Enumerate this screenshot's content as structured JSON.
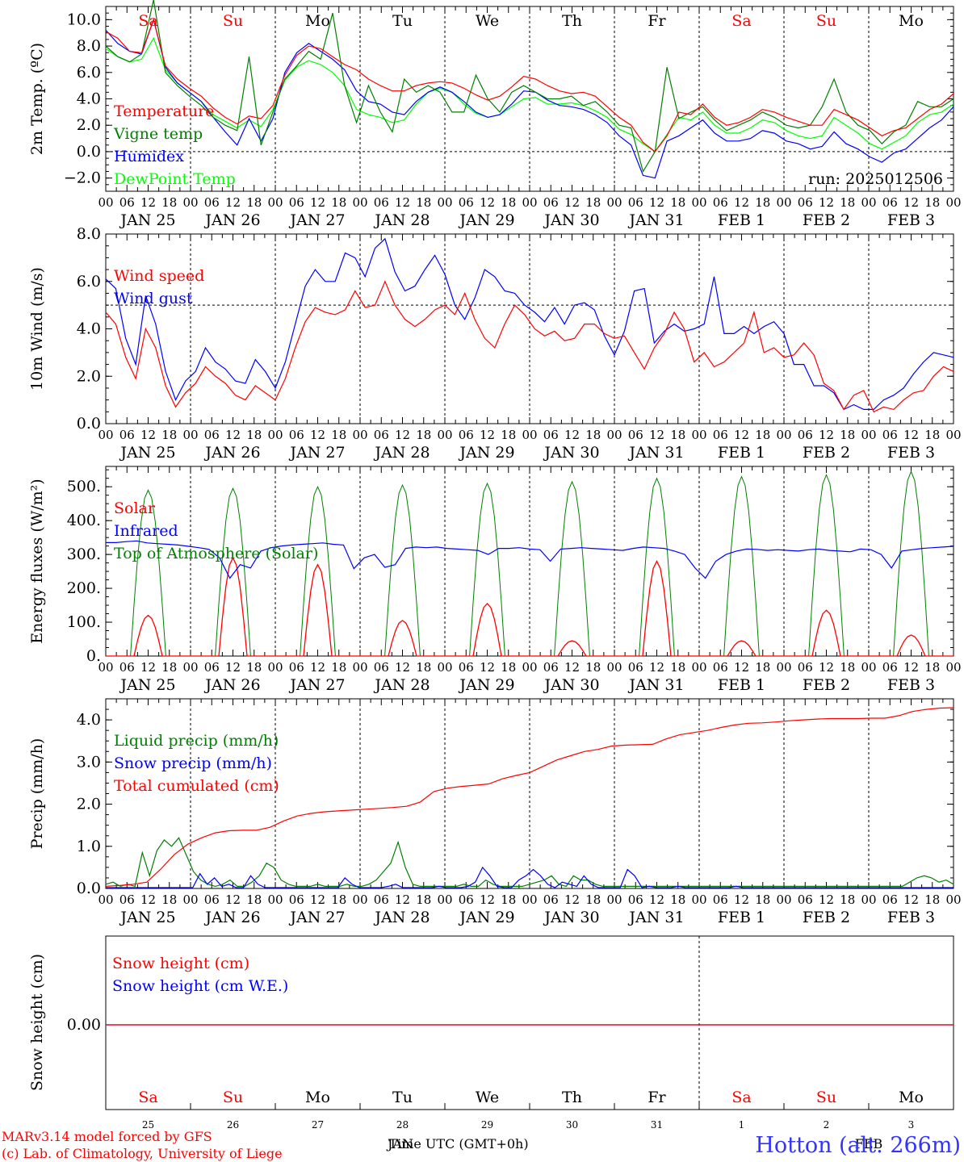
{
  "chart_data": [
    {
      "type": "line",
      "ylabel": "2m Temp. (ºC)",
      "ylim": [
        -3,
        11
      ],
      "yticks": [
        "10.0",
        "8.0",
        "6.0",
        "4.0",
        "2.0",
        "0.0",
        "−2.0"
      ],
      "ytick_values": [
        10,
        8,
        6,
        4,
        2,
        0,
        -2
      ],
      "ref_line": 0,
      "annotation": "run: 2025012506",
      "series": [
        {
          "name": "Temperature",
          "color": "#ff0000",
          "values": [
            9.1,
            8.6,
            7.6,
            7.5,
            10.0,
            6.5,
            5.5,
            4.8,
            4.2,
            3.3,
            2.6,
            2.1,
            2.7,
            2.5,
            3.5,
            5.8,
            7.3,
            8.0,
            7.8,
            7.2,
            6.6,
            6.2,
            5.5,
            5.0,
            4.6,
            4.6,
            5.0,
            5.2,
            5.3,
            5.2,
            4.8,
            4.3,
            3.9,
            4.2,
            4.9,
            5.7,
            5.5,
            5.0,
            4.6,
            4.4,
            4.5,
            4.2,
            3.4,
            2.6,
            2.0,
            0.7,
            0.0,
            1.2,
            3.0,
            2.8,
            3.6,
            2.6,
            2.0,
            2.2,
            2.6,
            3.2,
            3.0,
            2.6,
            2.3,
            2.0,
            2.0,
            3.2,
            2.8,
            2.4,
            1.8,
            1.2,
            1.6,
            1.8,
            2.5,
            3.2,
            3.6,
            4.4
          ]
        },
        {
          "name": "Vigne temp",
          "color": "#008000",
          "values": [
            8.0,
            7.2,
            6.8,
            7.4,
            11.5,
            6.0,
            5.0,
            4.2,
            3.5,
            2.6,
            2.0,
            1.6,
            7.2,
            0.5,
            3.0,
            5.5,
            6.5,
            7.6,
            7.0,
            10.5,
            5.0,
            2.2,
            5.0,
            3.0,
            1.5,
            5.5,
            4.5,
            5.0,
            4.5,
            3.0,
            3.0,
            5.8,
            4.0,
            3.0,
            4.5,
            5.0,
            4.5,
            4.0,
            4.0,
            4.2,
            3.5,
            3.8,
            3.0,
            2.0,
            1.8,
            -1.5,
            0.0,
            6.4,
            2.5,
            3.0,
            3.4,
            2.4,
            1.6,
            2.0,
            2.4,
            3.0,
            2.6,
            2.0,
            1.8,
            2.0,
            3.4,
            5.5,
            3.0,
            2.0,
            1.6,
            0.6,
            1.5,
            2.0,
            3.8,
            3.4,
            3.4,
            4.0
          ]
        },
        {
          "name": "Humidex",
          "color": "#0000ff",
          "values": [
            9.2,
            8.2,
            7.6,
            7.4,
            10.0,
            6.4,
            5.2,
            4.5,
            3.8,
            2.6,
            1.5,
            0.5,
            2.5,
            0.8,
            2.5,
            6.0,
            7.5,
            8.2,
            7.6,
            7.0,
            6.2,
            4.6,
            3.8,
            3.6,
            3.0,
            2.8,
            3.8,
            4.5,
            4.9,
            4.5,
            3.8,
            3.0,
            2.6,
            2.8,
            3.6,
            4.6,
            4.5,
            3.9,
            3.5,
            3.4,
            3.2,
            2.8,
            2.2,
            1.2,
            0.5,
            -1.8,
            -2.0,
            0.8,
            1.2,
            1.8,
            2.4,
            1.4,
            0.8,
            0.8,
            1.0,
            1.6,
            1.4,
            0.8,
            0.6,
            0.2,
            0.4,
            1.5,
            0.6,
            0.2,
            -0.4,
            -0.8,
            -0.1,
            0.2,
            1.0,
            1.8,
            2.4,
            3.4
          ]
        },
        {
          "name": "DewPoint Temp",
          "color": "#00ff00",
          "values": [
            7.8,
            7.2,
            6.8,
            7.0,
            8.6,
            6.2,
            5.2,
            4.5,
            3.8,
            2.8,
            2.3,
            1.8,
            2.4,
            1.9,
            3.2,
            5.4,
            6.4,
            6.9,
            6.6,
            6.0,
            5.0,
            3.2,
            2.8,
            2.6,
            2.2,
            2.4,
            3.6,
            4.5,
            4.8,
            4.5,
            3.6,
            2.9,
            2.6,
            2.8,
            3.4,
            4.0,
            4.1,
            3.6,
            3.6,
            3.7,
            3.5,
            3.1,
            2.6,
            1.7,
            1.3,
            0.6,
            0.0,
            1.3,
            2.6,
            2.4,
            3.0,
            2.0,
            1.4,
            1.4,
            1.8,
            2.4,
            2.2,
            1.6,
            1.2,
            1.0,
            1.2,
            2.6,
            2.0,
            1.4,
            0.6,
            0.2,
            0.7,
            1.2,
            2.2,
            2.8,
            3.0,
            3.6
          ]
        }
      ]
    },
    {
      "type": "line",
      "ylabel": "10m Wind (m/s)",
      "ylim": [
        0,
        8
      ],
      "yticks": [
        "8.0",
        "6.0",
        "4.0",
        "2.0",
        "0.0"
      ],
      "ytick_values": [
        8,
        6,
        4,
        2,
        0
      ],
      "ref_line": 5,
      "series": [
        {
          "name": "Wind speed",
          "color": "#ff0000",
          "values": [
            4.7,
            4.2,
            2.8,
            1.9,
            4.0,
            3.2,
            1.6,
            0.7,
            1.3,
            1.7,
            2.4,
            2.0,
            1.7,
            1.2,
            1.0,
            1.6,
            1.3,
            1.0,
            1.9,
            3.2,
            4.3,
            4.9,
            4.7,
            4.6,
            4.8,
            5.6,
            4.9,
            5.0,
            6.0,
            5.0,
            4.4,
            4.1,
            4.4,
            4.8,
            5.0,
            4.6,
            5.5,
            4.4,
            3.6,
            3.2,
            4.2,
            5.0,
            4.6,
            4.0,
            3.7,
            3.9,
            3.5,
            3.6,
            4.2,
            4.2,
            3.8,
            3.6,
            3.7,
            3.0,
            2.3,
            3.2,
            3.8,
            4.7,
            4.0,
            2.6,
            3.0,
            2.4,
            2.6,
            3.0,
            3.4,
            4.7,
            3.0,
            3.2,
            2.8,
            2.9,
            3.4,
            2.9,
            1.7,
            1.4,
            0.6,
            1.2,
            1.4,
            0.5,
            0.7,
            0.6,
            1.0,
            1.3,
            1.4,
            2.0,
            2.4,
            2.2
          ]
        },
        {
          "name": "Wind gust",
          "color": "#0000ff",
          "values": [
            6.1,
            5.7,
            3.6,
            2.5,
            5.4,
            4.2,
            2.2,
            1.0,
            1.8,
            2.2,
            3.2,
            2.6,
            2.3,
            1.8,
            1.7,
            2.7,
            2.2,
            1.5,
            2.6,
            4.2,
            5.8,
            6.5,
            6.0,
            6.0,
            7.2,
            7.0,
            6.2,
            7.4,
            7.8,
            6.4,
            5.6,
            5.8,
            6.5,
            7.1,
            6.3,
            5.0,
            4.4,
            5.3,
            6.5,
            6.2,
            5.6,
            5.5,
            5.0,
            4.7,
            4.3,
            4.9,
            4.2,
            5.0,
            5.1,
            4.8,
            3.7,
            2.9,
            3.9,
            5.6,
            5.7,
            3.4,
            3.9,
            4.2,
            3.9,
            4.0,
            4.2,
            6.2,
            3.8,
            3.8,
            4.1,
            3.8,
            4.1,
            4.3,
            3.8,
            2.5,
            2.5,
            1.6,
            1.6,
            1.3,
            0.6,
            0.8,
            0.6,
            0.6,
            1.0,
            1.2,
            1.5,
            2.1,
            2.6,
            3.0,
            2.9,
            2.8
          ]
        }
      ]
    },
    {
      "type": "line",
      "ylabel": "Energy fluxes (W/m²)",
      "ylim": [
        0,
        560
      ],
      "yticks": [
        "500.",
        "400.",
        "300.",
        "200.",
        "100.",
        "0."
      ],
      "ytick_values": [
        500,
        400,
        300,
        200,
        100,
        0
      ],
      "series": [
        {
          "name": "Solar",
          "color": "#ff0000",
          "peaks": [
            120,
            290,
            270,
            105,
            155,
            45,
            280,
            45,
            135,
            62
          ]
        },
        {
          "name": "Infrared",
          "color": "#0000ff",
          "values": [
            335,
            335,
            338,
            340,
            334,
            332,
            330,
            328,
            324,
            320,
            315,
            290,
            230,
            270,
            260,
            310,
            320,
            325,
            328,
            330,
            332,
            334,
            330,
            328,
            258,
            290,
            300,
            262,
            270,
            318,
            322,
            320,
            322,
            318,
            316,
            314,
            312,
            300,
            318,
            318,
            320,
            316,
            314,
            280,
            316,
            318,
            320,
            318,
            316,
            314,
            312,
            318,
            322,
            320,
            318,
            310,
            300,
            260,
            230,
            280,
            300,
            310,
            316,
            315,
            312,
            314,
            312,
            310,
            314,
            316,
            312,
            310,
            308,
            316,
            314,
            300,
            260,
            310,
            314,
            318,
            320,
            322,
            324
          ]
        },
        {
          "name": "Top of Atmosphere (Solar)",
          "color": "#008000",
          "peaks": [
            490,
            495,
            500,
            505,
            510,
            515,
            525,
            530,
            535,
            545
          ]
        }
      ]
    },
    {
      "type": "line",
      "ylabel": "Precip (mm/h)",
      "ylim": [
        0,
        4.5
      ],
      "yticks": [
        "4.0",
        "3.0",
        "2.0",
        "1.0",
        "0.0"
      ],
      "ytick_values": [
        4,
        3,
        2,
        1,
        0
      ],
      "series": [
        {
          "name": "Liquid precip (mm/h)",
          "color": "#008000",
          "values": [
            0.1,
            0.15,
            0.05,
            0.1,
            0.05,
            0.85,
            0.3,
            0.9,
            1.15,
            1.0,
            1.2,
            0.8,
            0.4,
            0.2,
            0.1,
            0.05,
            0.1,
            0.2,
            0.05,
            0.05,
            0.15,
            0.3,
            0.6,
            0.5,
            0.2,
            0.1,
            0.05,
            0.05,
            0.05,
            0.1,
            0.05,
            0.05,
            0.05,
            0.1,
            0.05,
            0.05,
            0.1,
            0.2,
            0.4,
            0.6,
            1.1,
            0.5,
            0.1,
            0.05,
            0.05,
            0.05,
            0.05,
            0.05,
            0.05,
            0.1,
            0.05,
            0.05,
            0.2,
            0.1,
            0.05,
            0.05,
            0.05,
            0.05,
            0.1,
            0.15,
            0.2,
            0.3,
            0.1,
            0.05,
            0.3,
            0.2,
            0.2,
            0.1,
            0.05,
            0.05,
            0.05,
            0.05,
            0.05,
            0.05,
            0.05,
            0.05,
            0.05,
            0.05,
            0.05,
            0.05,
            0.05,
            0.05,
            0.05,
            0.05,
            0.05,
            0.05,
            0.05,
            0.05,
            0.05,
            0.05,
            0.05,
            0.05,
            0.05,
            0.05,
            0.05,
            0.05,
            0.05,
            0.05,
            0.05,
            0.05,
            0.05,
            0.05,
            0.05,
            0.05,
            0.05,
            0.05,
            0.05,
            0.05,
            0.05,
            0.05,
            0.15,
            0.25,
            0.3,
            0.25,
            0.15,
            0.2,
            0.1
          ]
        },
        {
          "name": "Snow precip (mm/h)",
          "color": "#0000ff",
          "values": [
            0.02,
            0.02,
            0.02,
            0.02,
            0.02,
            0.02,
            0.02,
            0.02,
            0.02,
            0.02,
            0.02,
            0.02,
            0.02,
            0.35,
            0.1,
            0.25,
            0.05,
            0.1,
            0.02,
            0.02,
            0.3,
            0.1,
            0.02,
            0.02,
            0.02,
            0.02,
            0.02,
            0.02,
            0.02,
            0.02,
            0.02,
            0.02,
            0.02,
            0.25,
            0.1,
            0.02,
            0.02,
            0.02,
            0.02,
            0.05,
            0.1,
            0.02,
            0.02,
            0.02,
            0.02,
            0.02,
            0.05,
            0.02,
            0.02,
            0.02,
            0.05,
            0.15,
            0.5,
            0.3,
            0.05,
            0.02,
            0.02,
            0.2,
            0.3,
            0.45,
            0.3,
            0.1,
            0.02,
            0.15,
            0.1,
            0.05,
            0.3,
            0.1,
            0.02,
            0.02,
            0.02,
            0.02,
            0.45,
            0.3,
            0.02,
            0.05,
            0.02,
            0.02,
            0.02,
            0.05,
            0.02,
            0.02,
            0.02,
            0.02,
            0.02,
            0.02,
            0.02,
            0.05,
            0.02,
            0.02,
            0.02,
            0.02,
            0.02,
            0.02,
            0.02,
            0.02,
            0.02,
            0.02,
            0.02,
            0.02,
            0.02,
            0.02,
            0.02,
            0.02,
            0.02,
            0.02,
            0.02,
            0.02,
            0.02,
            0.02,
            0.02,
            0.02,
            0.02,
            0.02,
            0.02,
            0.02,
            0.02,
            0.02
          ]
        },
        {
          "name": "Total cumulated (cm)",
          "color": "#ff0000",
          "values": [
            0.05,
            0.07,
            0.1,
            0.15,
            0.45,
            0.8,
            1.05,
            1.2,
            1.32,
            1.37,
            1.38,
            1.38,
            1.45,
            1.6,
            1.72,
            1.78,
            1.82,
            1.84,
            1.86,
            1.88,
            1.9,
            1.92,
            1.95,
            2.05,
            2.3,
            2.38,
            2.42,
            2.45,
            2.48,
            2.6,
            2.68,
            2.75,
            2.9,
            3.05,
            3.15,
            3.25,
            3.3,
            3.38,
            3.4,
            3.41,
            3.42,
            3.55,
            3.65,
            3.7,
            3.75,
            3.82,
            3.88,
            3.92,
            3.93,
            3.95,
            3.98,
            4.0,
            4.02,
            4.03,
            4.03,
            4.03,
            4.04,
            4.04,
            4.1,
            4.2,
            4.25,
            4.28,
            4.29
          ]
        }
      ]
    },
    {
      "type": "line",
      "ylabel": "Snow height (cm)",
      "yticks": [
        "0.00"
      ],
      "series": [
        {
          "name": "Snow height (cm)",
          "color": "#ff0000",
          "values": [
            0,
            0
          ]
        },
        {
          "name": "Snow height (cm W.E.)",
          "color": "#0000ff",
          "values": [
            0,
            0
          ]
        }
      ]
    }
  ],
  "hour_ticks": [
    "00",
    "06",
    "12",
    "18"
  ],
  "date_labels": [
    "JAN 25",
    "JAN 26",
    "JAN 27",
    "JAN 28",
    "JAN 29",
    "JAN 30",
    "JAN 31",
    "FEB  1",
    "FEB  2",
    "FEB  3"
  ],
  "day_labels": [
    {
      "text": "Sa",
      "color": "#ff0000"
    },
    {
      "text": "Su",
      "color": "#ff0000"
    },
    {
      "text": "Mo",
      "color": "#000000"
    },
    {
      "text": "Tu",
      "color": "#000000"
    },
    {
      "text": "We",
      "color": "#000000"
    },
    {
      "text": "Th",
      "color": "#000000"
    },
    {
      "text": "Fr",
      "color": "#000000"
    },
    {
      "text": "Sa",
      "color": "#ff0000"
    },
    {
      "text": "Su",
      "color": "#ff0000"
    },
    {
      "text": "Mo",
      "color": "#000000"
    }
  ],
  "bottom_day_numbers": [
    "25",
    "26",
    "27",
    "28",
    "29",
    "30",
    "31",
    "1",
    "2",
    "3"
  ],
  "xlabel": "Time UTC (GMT+0h)",
  "xlabel_overlap_1": "JAN",
  "xlabel_overlap_2": "FEB",
  "footer": {
    "line1": "MARv3.14 model forced by GFS",
    "line2": "(c) Lab. of Climatology, University of Liege",
    "station": "Hotton (alt. 266m)"
  }
}
